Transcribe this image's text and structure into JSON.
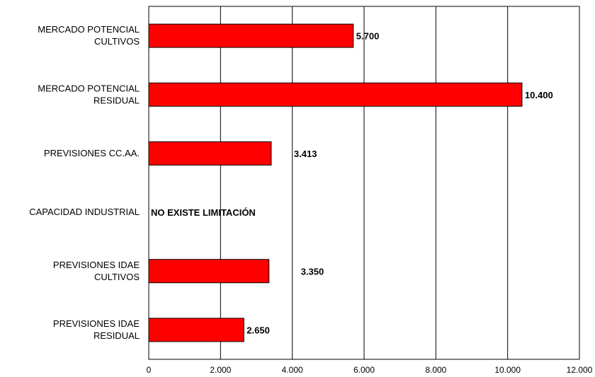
{
  "chart_data": {
    "type": "bar",
    "orientation": "horizontal",
    "categories": [
      [
        "MERCADO POTENCIAL",
        "CULTIVOS"
      ],
      [
        "MERCADO POTENCIAL",
        "RESIDUAL"
      ],
      [
        "PREVISIONES CC.AA."
      ],
      [
        "CAPACIDAD INDUSTRIAL"
      ],
      [
        "PREVISIONES IDAE",
        "CULTIVOS"
      ],
      [
        "PREVISIONES IDAE",
        "RESIDUAL"
      ]
    ],
    "values": [
      5700,
      10400,
      3413,
      null,
      3350,
      2650
    ],
    "data_labels": [
      "5.700",
      "10.400",
      "3.413",
      "NO EXISTE LIMITACIÓN",
      "3.350",
      "2.650"
    ],
    "x_ticks": [
      "0",
      "2.000",
      "4.000",
      "6.000",
      "8.000",
      "10.000",
      "12.000"
    ],
    "xlim": [
      0,
      12000
    ],
    "bar_color": "#ff0000",
    "grid": true,
    "legend": false,
    "title": "",
    "xlabel": "",
    "ylabel": ""
  }
}
